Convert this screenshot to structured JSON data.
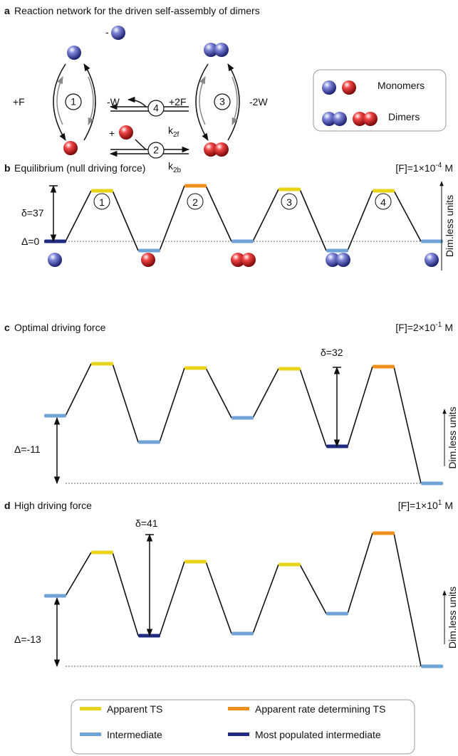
{
  "panel_a": {
    "label": "a",
    "title": "Reaction network for the driven self-assembly of dimers",
    "steps": [
      "1",
      "2",
      "3",
      "4"
    ],
    "plus_f": "+F",
    "minus_w": "-W",
    "plus_2f": "+2F",
    "minus_2w": "-2W",
    "plus": "+",
    "minus": "-",
    "k_forward": {
      "base": "k",
      "sub": "2f"
    },
    "k_backward": {
      "base": "k",
      "sub": "2b"
    },
    "legend": [
      "Monomers",
      "Dimers"
    ]
  },
  "panels": [
    {
      "label": "b",
      "title": "Equilibrium (null driving force)",
      "concentration": {
        "base": "[F]=1×10",
        "exp": "-4",
        "unit": "M"
      },
      "delta": "δ=37",
      "Delta": "Δ=0",
      "axis_label": "Dim.less units",
      "steps": [
        "1",
        "2",
        "3",
        "4"
      ]
    },
    {
      "label": "c",
      "title": "Optimal driving force",
      "concentration": {
        "base": "[F]=2×10",
        "exp": "-1",
        "unit": "M"
      },
      "delta": "δ=32",
      "Delta": "Δ=-11",
      "axis_label": "Dim.less units"
    },
    {
      "label": "d",
      "title": "High driving force",
      "concentration": {
        "base": "[F]=1×10",
        "exp": "1",
        "unit": "M"
      },
      "delta": "δ=41",
      "Delta": "Δ=-13",
      "axis_label": "Dim.less units"
    }
  ],
  "legend": [
    "Apparent TS",
    "Apparent rate determining TS",
    "Intermediate",
    "Most populated intermediate"
  ]
}
